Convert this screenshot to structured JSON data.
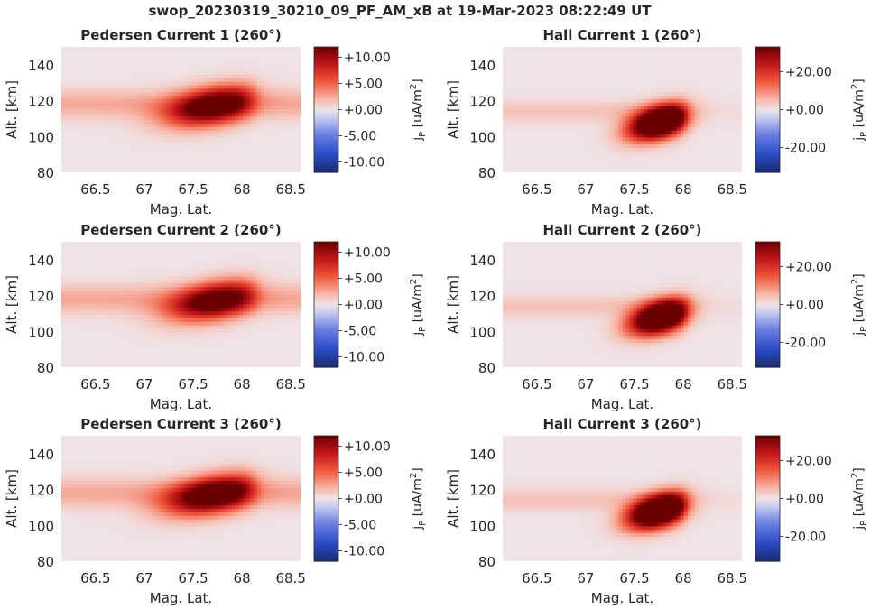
{
  "figure_title": "swop_20230319_30210_09_PF_AM_xB at 19-Mar-2023 08:22:49 UT",
  "colormap": {
    "stops": [
      [
        0.0,
        "#1a2a6c"
      ],
      [
        0.14,
        "#2b4bc7"
      ],
      [
        0.3,
        "#6a7fe0"
      ],
      [
        0.44,
        "#c9cdf2"
      ],
      [
        0.5,
        "#efe3e6"
      ],
      [
        0.58,
        "#f6b8aa"
      ],
      [
        0.72,
        "#ef5a3e"
      ],
      [
        0.86,
        "#c3161a"
      ],
      [
        1.0,
        "#6b0000"
      ]
    ]
  },
  "chart_data": [
    {
      "type": "heatmap",
      "title": "Pedersen Current 1 (260°)",
      "xlabel": "Mag. Lat.",
      "ylabel": "Alt. [km]",
      "x_ticks": [
        "66.5",
        "67",
        "67.5",
        "68",
        "68.5"
      ],
      "y_ticks": [
        "80",
        "100",
        "120",
        "140"
      ],
      "xlim": [
        66.15,
        68.6
      ],
      "ylim": [
        80,
        150
      ],
      "colorbar": {
        "label_main": "j",
        "label_sub": "P",
        "label_unit": " [uA/m",
        "label_exp": "2",
        "label_end": "]",
        "range": [
          -12,
          12
        ],
        "ticks": [
          "+10.00",
          "+5.00",
          "+0.00",
          "-5.00",
          "-10.00"
        ],
        "tick_values": [
          10,
          5,
          0,
          -5,
          -10
        ]
      },
      "field": {
        "kind": "pedersen",
        "background_alt": 118,
        "background_width": 8,
        "background_amp": 2.5,
        "peak_lat": 67.72,
        "peak_alt": 117,
        "peak_amp": 14,
        "sigma_lat": 0.33,
        "sigma_alt": 7,
        "tilt": 9
      }
    },
    {
      "type": "heatmap",
      "title": "Hall Current 1 (260°)",
      "xlabel": "Mag. Lat.",
      "ylabel": "Alt. [km]",
      "x_ticks": [
        "66.5",
        "67",
        "67.5",
        "68",
        "68.5"
      ],
      "y_ticks": [
        "80",
        "100",
        "120",
        "140"
      ],
      "xlim": [
        66.15,
        68.6
      ],
      "ylim": [
        80,
        150
      ],
      "colorbar": {
        "label_main": "j",
        "label_sub": "P",
        "label_unit": " [uA/m",
        "label_exp": "2",
        "label_end": "]",
        "range": [
          -33,
          33
        ],
        "ticks": [
          "+20.00",
          "+0.00",
          "-20.00"
        ],
        "tick_values": [
          20,
          0,
          -20
        ]
      },
      "field": {
        "kind": "hall",
        "background_alt": 114,
        "background_width": 6,
        "background_amp": 4,
        "peak_lat": 67.77,
        "peak_alt": 108,
        "peak_amp": 60,
        "sigma_lat": 0.22,
        "sigma_alt": 6,
        "tilt": 12
      }
    },
    {
      "type": "heatmap",
      "title": "Pedersen Current 2 (260°)",
      "xlabel": "Mag. Lat.",
      "ylabel": "Alt. [km]",
      "x_ticks": [
        "66.5",
        "67",
        "67.5",
        "68",
        "68.5"
      ],
      "y_ticks": [
        "80",
        "100",
        "120",
        "140"
      ],
      "xlim": [
        66.15,
        68.6
      ],
      "ylim": [
        80,
        150
      ],
      "colorbar": {
        "label_main": "j",
        "label_sub": "P",
        "label_unit": " [uA/m",
        "label_exp": "2",
        "label_end": "]",
        "range": [
          -12,
          12
        ],
        "ticks": [
          "+10.00",
          "+5.00",
          "+0.00",
          "-5.00",
          "-10.00"
        ],
        "tick_values": [
          10,
          5,
          0,
          -5,
          -10
        ]
      },
      "field": {
        "kind": "pedersen",
        "background_alt": 118,
        "background_width": 8,
        "background_amp": 2.5,
        "peak_lat": 67.74,
        "peak_alt": 117,
        "peak_amp": 13,
        "sigma_lat": 0.33,
        "sigma_alt": 7,
        "tilt": 9
      }
    },
    {
      "type": "heatmap",
      "title": "Hall Current 2 (260°)",
      "xlabel": "Mag. Lat.",
      "ylabel": "Alt. [km]",
      "x_ticks": [
        "66.5",
        "67",
        "67.5",
        "68",
        "68.5"
      ],
      "y_ticks": [
        "80",
        "100",
        "120",
        "140"
      ],
      "xlim": [
        66.15,
        68.6
      ],
      "ylim": [
        80,
        150
      ],
      "colorbar": {
        "label_main": "j",
        "label_sub": "P",
        "label_unit": " [uA/m",
        "label_exp": "2",
        "label_end": "]",
        "range": [
          -33,
          33
        ],
        "ticks": [
          "+20.00",
          "+0.00",
          "-20.00"
        ],
        "tick_values": [
          20,
          0,
          -20
        ]
      },
      "field": {
        "kind": "hall",
        "background_alt": 114,
        "background_width": 6,
        "background_amp": 4,
        "peak_lat": 67.78,
        "peak_alt": 108,
        "peak_amp": 58,
        "sigma_lat": 0.22,
        "sigma_alt": 6,
        "tilt": 12
      }
    },
    {
      "type": "heatmap",
      "title": "Pedersen Current 3 (260°)",
      "xlabel": "Mag. Lat.",
      "ylabel": "Alt. [km]",
      "x_ticks": [
        "66.5",
        "67",
        "67.5",
        "68",
        "68.5"
      ],
      "y_ticks": [
        "80",
        "100",
        "120",
        "140"
      ],
      "xlim": [
        66.15,
        68.6
      ],
      "ylim": [
        80,
        150
      ],
      "colorbar": {
        "label_main": "j",
        "label_sub": "P",
        "label_unit": " [uA/m",
        "label_exp": "2",
        "label_end": "]",
        "range": [
          -12,
          12
        ],
        "ticks": [
          "+10.00",
          "+5.00",
          "+0.00",
          "-5.00",
          "-10.00"
        ],
        "tick_values": [
          10,
          5,
          0,
          -5,
          -10
        ]
      },
      "field": {
        "kind": "pedersen",
        "background_alt": 118,
        "background_width": 8,
        "background_amp": 2.5,
        "peak_lat": 67.72,
        "peak_alt": 117,
        "peak_amp": 14.5,
        "sigma_lat": 0.34,
        "sigma_alt": 7,
        "tilt": 9
      }
    },
    {
      "type": "heatmap",
      "title": "Hall Current 3 (260°)",
      "xlabel": "Mag. Lat.",
      "ylabel": "Alt. [km]",
      "x_ticks": [
        "66.5",
        "67",
        "67.5",
        "68",
        "68.5"
      ],
      "y_ticks": [
        "80",
        "100",
        "120",
        "140"
      ],
      "xlim": [
        66.15,
        68.6
      ],
      "ylim": [
        80,
        150
      ],
      "colorbar": {
        "label_main": "j",
        "label_sub": "P",
        "label_unit": " [uA/m",
        "label_exp": "2",
        "label_end": "]",
        "range": [
          -33,
          33
        ],
        "ticks": [
          "+20.00",
          "+0.00",
          "-20.00"
        ],
        "tick_values": [
          20,
          0,
          -20
        ]
      },
      "field": {
        "kind": "hall",
        "background_alt": 114,
        "background_width": 6,
        "background_amp": 4,
        "peak_lat": 67.76,
        "peak_alt": 108,
        "peak_amp": 62,
        "sigma_lat": 0.22,
        "sigma_alt": 6,
        "tilt": 12
      }
    }
  ]
}
